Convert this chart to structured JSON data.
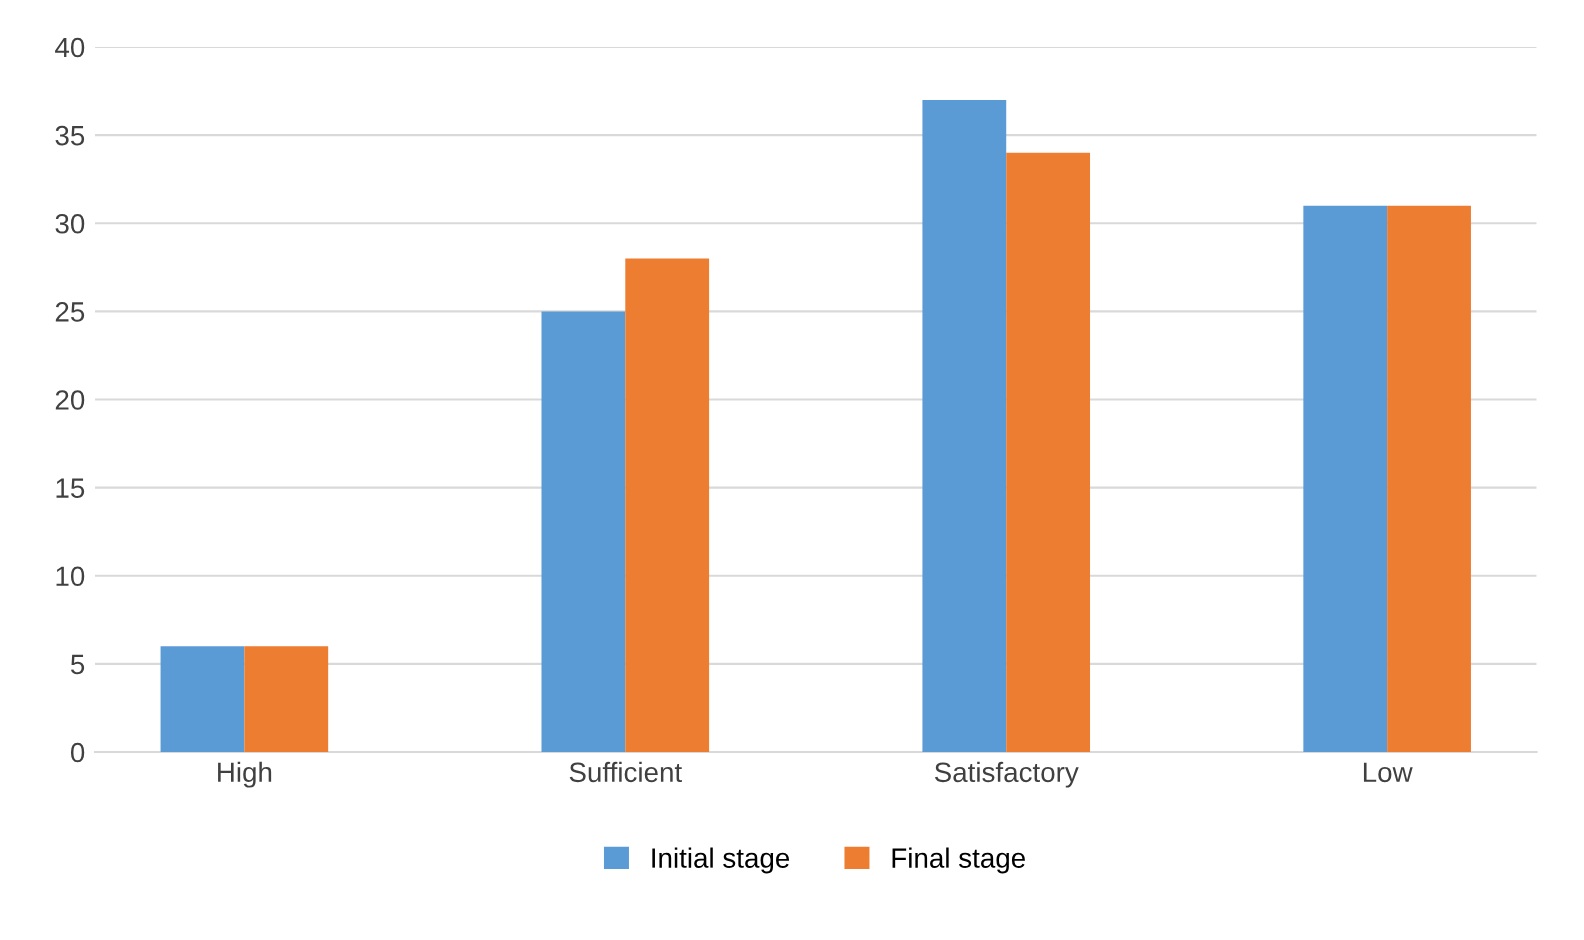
{
  "chart_data": {
    "type": "bar",
    "categories": [
      "High",
      "Sufficient",
      "Satisfactory",
      "Low"
    ],
    "series": [
      {
        "name": "Initial stage",
        "color": "#5b9bd5",
        "values": [
          6,
          25,
          37,
          31
        ]
      },
      {
        "name": "Final stage",
        "color": "#ed7d31",
        "values": [
          6,
          28,
          34,
          31
        ]
      }
    ],
    "ylim": [
      0,
      40
    ],
    "yticks": [
      0,
      5,
      10,
      15,
      20,
      25,
      30,
      35,
      40
    ],
    "grid": "y",
    "legend": "bottom"
  }
}
